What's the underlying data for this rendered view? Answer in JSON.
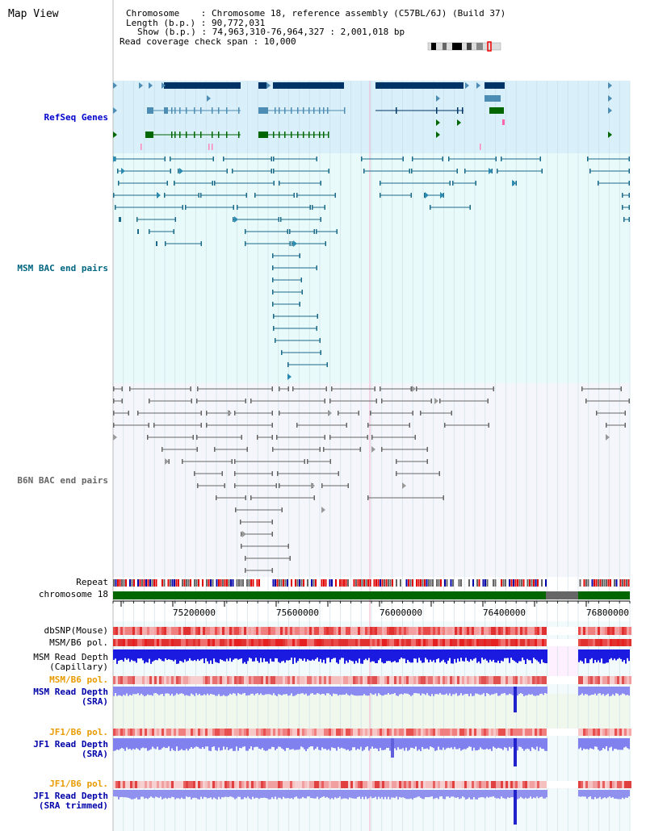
{
  "page": {
    "title": "Map View",
    "info": {
      "chromosome_key": "Chromosome",
      "chromosome_val": "Chromosome 18, reference assembly (C57BL/6J) (Build 37)",
      "length_key": "Length (b.p.)",
      "length_val": "90,772,031",
      "show_key": "Show (b.p.)",
      "show_val": "74,963,310-76,964,327 : 2,001,018 bp",
      "coverage_key": "Read coverage check span",
      "coverage_val": "10,000"
    }
  },
  "tracks": {
    "refseq": {
      "label": "RefSeq Genes",
      "color": "#0000cc"
    },
    "msm_bac": {
      "label": "MSM BAC end pairs",
      "color": "#006680"
    },
    "b6n_bac": {
      "label": "B6N BAC end pairs",
      "color": "#666666"
    },
    "repeat": {
      "label": "Repeat"
    },
    "chromosome": {
      "label": "chromosome 18"
    },
    "dbsnp": {
      "label": "dbSNP(Mouse)"
    },
    "msm_b6_pol": {
      "label": "MSM/B6 pol."
    },
    "msm_depth_cap": {
      "line1": "MSM Read Depth",
      "line2": "(Capillary)"
    },
    "msm_b6_pol2": {
      "label": "MSM/B6 pol.",
      "color": "#e89b00"
    },
    "msm_depth_sra": {
      "line1": "MSM Read Depth",
      "line2": "(SRA)",
      "color": "#0000aa"
    },
    "jf1_b6_pol": {
      "label": "JF1/B6 pol.",
      "color": "#e89b00"
    },
    "jf1_depth_sra": {
      "line1": "JF1 Read Depth",
      "line2": "(SRA)",
      "color": "#0000aa"
    },
    "jf1_b6_pol2": {
      "label": "JF1/B6 pol.",
      "color": "#e89b00"
    },
    "jf1_depth_trim": {
      "line1": "JF1 Read Depth",
      "line2": "(SRA trimmed)",
      "color": "#0000aa"
    }
  },
  "ruler": {
    "ticks": [
      "75200000",
      "75600000",
      "76000000",
      "76400000",
      "76800000"
    ]
  }
}
